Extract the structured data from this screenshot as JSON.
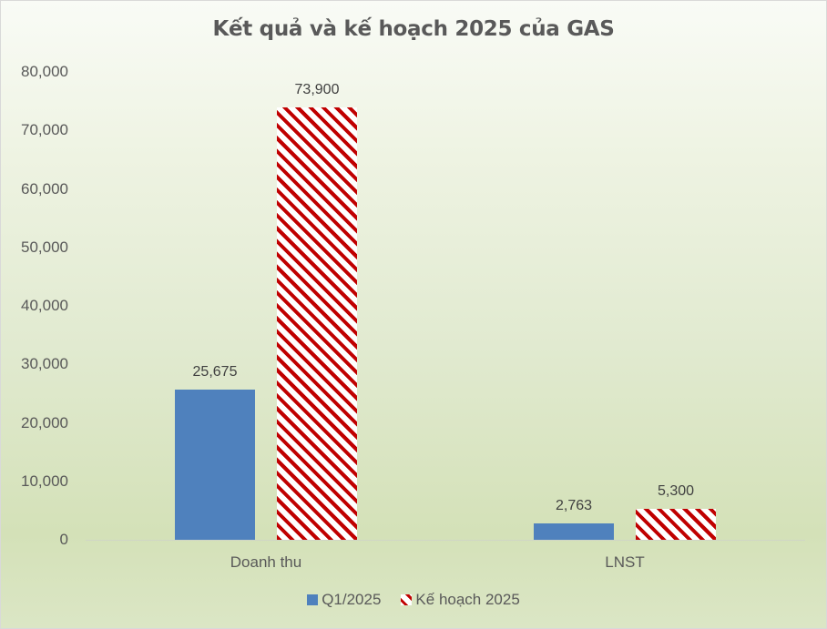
{
  "chart_data": {
    "type": "bar",
    "title": "Kết quả và kế hoạch 2025 của GAS",
    "categories": [
      "Doanh thu",
      "LNST"
    ],
    "series": [
      {
        "name": "Q1/2025",
        "values": [
          25675,
          2763
        ],
        "labels": [
          "25,675",
          "2,763"
        ],
        "color": "#4f81bd",
        "fill": "solid"
      },
      {
        "name": "Kế hoạch 2025",
        "values": [
          73900,
          5300
        ],
        "labels": [
          "73,900",
          "5,300"
        ],
        "color": "#c00000",
        "fill": "diagonal-hatch"
      }
    ],
    "xlabel": "",
    "ylabel": "",
    "ylim": [
      0,
      80000
    ],
    "yticks": [
      "0",
      "10,000",
      "20,000",
      "30,000",
      "40,000",
      "50,000",
      "60,000",
      "70,000",
      "80,000"
    ],
    "grid": false,
    "legend_position": "bottom"
  },
  "colors": {
    "series_blue": "#4f81bd",
    "series_red": "#c00000",
    "text": "#595959"
  }
}
